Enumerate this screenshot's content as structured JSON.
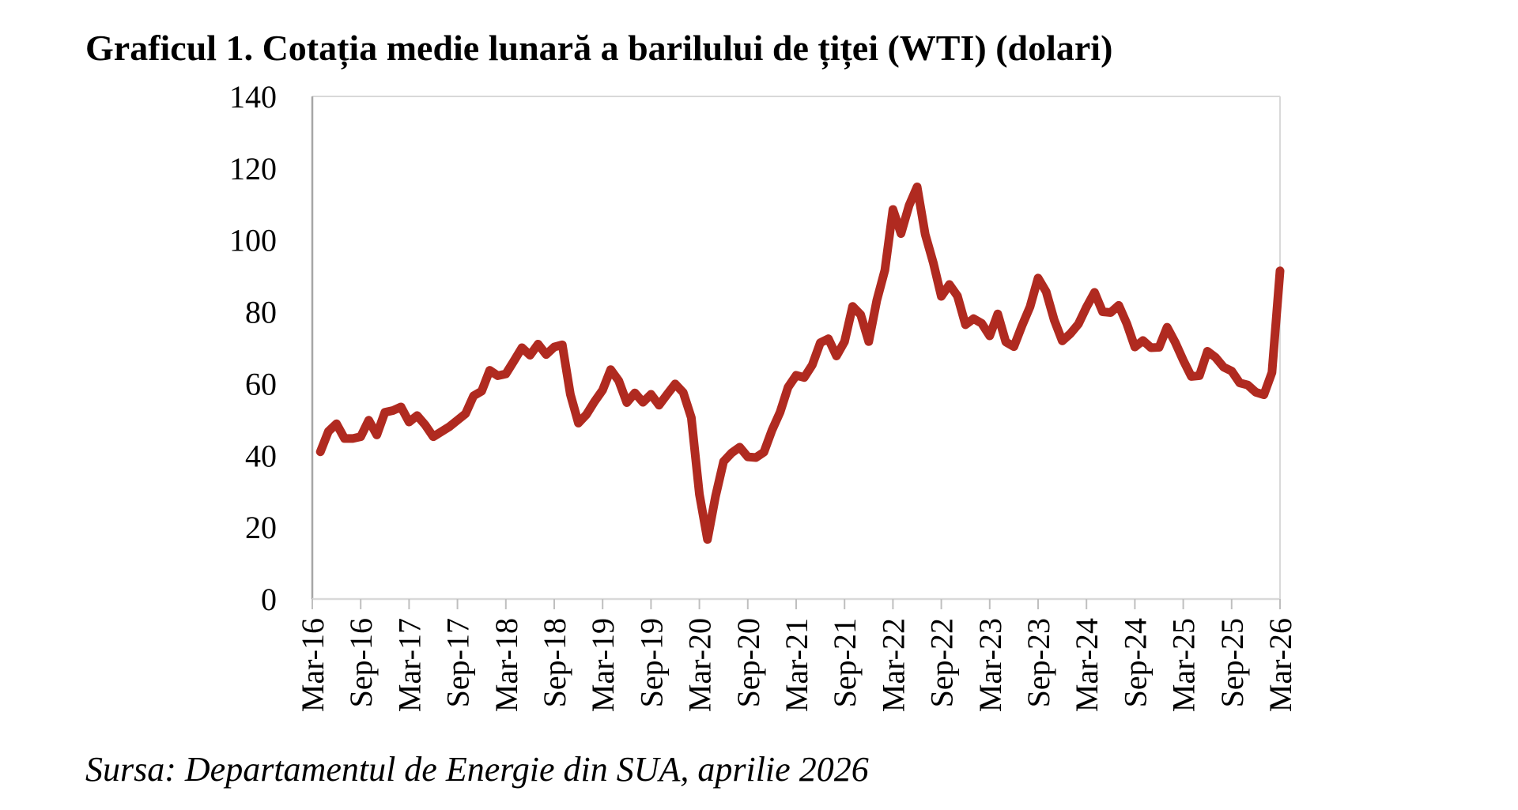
{
  "page": {
    "background": "#FFFFFF"
  },
  "header": {
    "title": "Graficul 1. Cotația medie lunară a barilului de țiței (WTI) (dolari)"
  },
  "footer": {
    "source": "Sursa: Departamentul de Energie din SUA, aprilie 2026"
  },
  "chart_data": {
    "type": "line",
    "title": "Graficul 1. Cotația medie lunară a barilului de țiței (WTI) (dolari)",
    "source_note": "Sursa: Departamentul de Energie din SUA, aprilie 2026",
    "xlabel": "",
    "ylabel": "",
    "ylim": [
      0,
      140
    ],
    "y_tick_interval": 20,
    "y_tick_labels": [
      "0",
      "20",
      "40",
      "60",
      "80",
      "100",
      "120",
      "140"
    ],
    "x_axis_start": "Mar-16",
    "x_axis_end": "Mar-26",
    "x_tick_interval_months": 6,
    "x_tick_labels": [
      "Mar-16",
      "Sep-16",
      "Mar-17",
      "Sep-17",
      "Mar-18",
      "Sep-18",
      "Mar-19",
      "Sep-19",
      "Mar-20",
      "Sep-20",
      "Mar-21",
      "Sep-21",
      "Mar-22",
      "Sep-22",
      "Mar-23",
      "Sep-23",
      "Mar-24",
      "Sep-24",
      "Mar-25",
      "Sep-25",
      "Mar-26"
    ],
    "grid": "off",
    "legend_position": "none",
    "line_color": "#B02A20",
    "line_width": 11,
    "axis_color": "#A6A6A6",
    "border_color": "#D9D9D9",
    "tick_color": "#BFBFBF",
    "series": [
      {
        "name": "Cotația medie lunară WTI (dolari/baril)",
        "color": "#B02A20",
        "first_point_month": "Apr-16",
        "months_after_axis_start_of_first_point": 1,
        "months": [
          "Apr-16",
          "May-16",
          "Jun-16",
          "Jul-16",
          "Aug-16",
          "Sep-16",
          "Oct-16",
          "Nov-16",
          "Dec-16",
          "Jan-17",
          "Feb-17",
          "Mar-17",
          "Apr-17",
          "May-17",
          "Jun-17",
          "Jul-17",
          "Aug-17",
          "Sep-17",
          "Oct-17",
          "Nov-17",
          "Dec-17",
          "Jan-18",
          "Feb-18",
          "Mar-18",
          "Apr-18",
          "May-18",
          "Jun-18",
          "Jul-18",
          "Aug-18",
          "Sep-18",
          "Oct-18",
          "Nov-18",
          "Dec-18",
          "Jan-19",
          "Feb-19",
          "Mar-19",
          "Apr-19",
          "May-19",
          "Jun-19",
          "Jul-19",
          "Aug-19",
          "Sep-19",
          "Oct-19",
          "Nov-19",
          "Dec-19",
          "Jan-20",
          "Feb-20",
          "Mar-20",
          "Apr-20",
          "May-20",
          "Jun-20",
          "Jul-20",
          "Aug-20",
          "Sep-20",
          "Oct-20",
          "Nov-20",
          "Dec-20",
          "Jan-21",
          "Feb-21",
          "Mar-21",
          "Apr-21",
          "May-21",
          "Jun-21",
          "Jul-21",
          "Aug-21",
          "Sep-21",
          "Oct-21",
          "Nov-21",
          "Dec-21",
          "Jan-22",
          "Feb-22",
          "Mar-22",
          "Apr-22",
          "May-22",
          "Jun-22",
          "Jul-22",
          "Aug-22",
          "Sep-22",
          "Oct-22",
          "Nov-22",
          "Dec-22",
          "Jan-23",
          "Feb-23",
          "Mar-23",
          "Apr-23",
          "May-23",
          "Jun-23",
          "Jul-23",
          "Aug-23",
          "Sep-23",
          "Oct-23",
          "Nov-23",
          "Dec-23",
          "Jan-24",
          "Feb-24",
          "Mar-24",
          "Apr-24",
          "May-24",
          "Jun-24",
          "Jul-24",
          "Aug-24",
          "Sep-24",
          "Oct-24",
          "Nov-24",
          "Dec-24",
          "Jan-25",
          "Feb-25",
          "Mar-25",
          "Apr-25",
          "May-25",
          "Jun-25",
          "Jul-25",
          "Aug-25",
          "Sep-25",
          "Oct-25",
          "Nov-25",
          "Dec-25",
          "Jan-26",
          "Feb-26",
          "Mar-26"
        ],
        "values": [
          41.0,
          46.7,
          48.8,
          44.7,
          44.7,
          45.2,
          49.8,
          45.7,
          52.0,
          52.5,
          53.5,
          49.3,
          51.1,
          48.5,
          45.2,
          46.6,
          48.0,
          49.8,
          51.6,
          56.6,
          57.9,
          63.7,
          62.2,
          62.7,
          66.3,
          70.0,
          67.9,
          71.0,
          68.1,
          70.2,
          70.8,
          57.0,
          49.0,
          51.4,
          55.0,
          58.2,
          63.9,
          60.8,
          54.7,
          57.4,
          54.8,
          57.0,
          54.0,
          57.0,
          59.9,
          57.5,
          50.5,
          29.2,
          16.6,
          28.6,
          38.3,
          40.7,
          42.3,
          39.6,
          39.4,
          40.9,
          47.0,
          52.0,
          59.0,
          62.3,
          61.7,
          65.2,
          71.4,
          72.5,
          67.7,
          71.7,
          81.5,
          79.2,
          71.7,
          83.2,
          91.6,
          108.5,
          101.8,
          109.6,
          114.8,
          101.6,
          93.7,
          84.3,
          87.6,
          84.4,
          76.4,
          78.1,
          76.8,
          73.3,
          79.4,
          71.6,
          70.3,
          76.1,
          81.4,
          89.4,
          85.6,
          77.7,
          71.9,
          73.9,
          76.6,
          81.3,
          85.4,
          80.0,
          79.8,
          81.8,
          76.7,
          70.2,
          72.0,
          70.0,
          70.1,
          75.7,
          71.5,
          66.5,
          62.0,
          62.2,
          69.0,
          67.3,
          64.6,
          63.5,
          60.2,
          59.6,
          57.6,
          56.9,
          63.1,
          91.4
        ]
      }
    ]
  }
}
